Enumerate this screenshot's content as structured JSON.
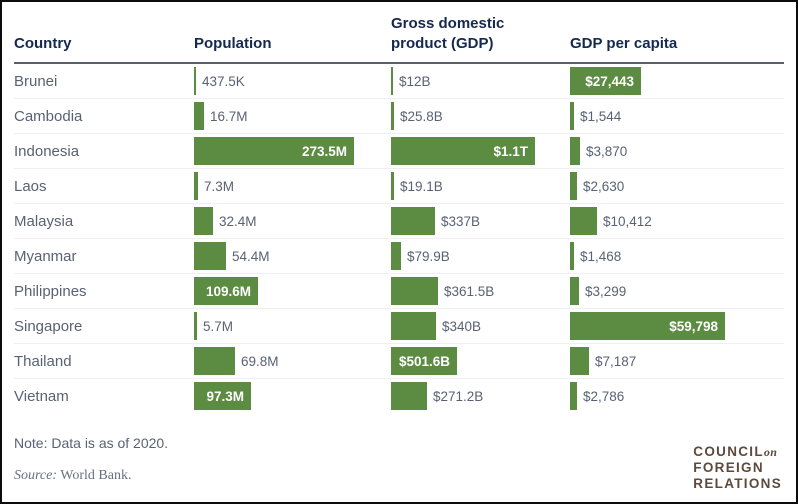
{
  "header": {
    "columns": [
      "Country",
      "Population",
      "Gross domestic product (GDP)",
      "GDP per capita"
    ]
  },
  "chart_data": {
    "type": "bar",
    "orientation": "horizontal",
    "description": "Table of horizontal bars comparing Southeast Asian countries",
    "categories": [
      "Brunei",
      "Cambodia",
      "Indonesia",
      "Laos",
      "Malaysia",
      "Myanmar",
      "Philippines",
      "Singapore",
      "Thailand",
      "Vietnam"
    ],
    "series_names": [
      "Population",
      "Gross domestic product (GDP)",
      "GDP per capita"
    ],
    "rows": [
      {
        "country": "Brunei",
        "population": {
          "label": "437.5K",
          "value": 0.4375,
          "inside": false
        },
        "gdp": {
          "label": "$12B",
          "value": 12,
          "inside": false
        },
        "gdp_per_capita": {
          "label": "$27,443",
          "value": 27443,
          "inside": true
        }
      },
      {
        "country": "Cambodia",
        "population": {
          "label": "16.7M",
          "value": 16.7,
          "inside": false
        },
        "gdp": {
          "label": "$25.8B",
          "value": 25.8,
          "inside": false
        },
        "gdp_per_capita": {
          "label": "$1,544",
          "value": 1544,
          "inside": false
        }
      },
      {
        "country": "Indonesia",
        "population": {
          "label": "273.5M",
          "value": 273.5,
          "inside": true
        },
        "gdp": {
          "label": "$1.1T",
          "value": 1100,
          "inside": true
        },
        "gdp_per_capita": {
          "label": "$3,870",
          "value": 3870,
          "inside": false
        }
      },
      {
        "country": "Laos",
        "population": {
          "label": "7.3M",
          "value": 7.3,
          "inside": false
        },
        "gdp": {
          "label": "$19.1B",
          "value": 19.1,
          "inside": false
        },
        "gdp_per_capita": {
          "label": "$2,630",
          "value": 2630,
          "inside": false
        }
      },
      {
        "country": "Malaysia",
        "population": {
          "label": "32.4M",
          "value": 32.4,
          "inside": false
        },
        "gdp": {
          "label": "$337B",
          "value": 337,
          "inside": false
        },
        "gdp_per_capita": {
          "label": "$10,412",
          "value": 10412,
          "inside": false
        }
      },
      {
        "country": "Myanmar",
        "population": {
          "label": "54.4M",
          "value": 54.4,
          "inside": false
        },
        "gdp": {
          "label": "$79.9B",
          "value": 79.9,
          "inside": false
        },
        "gdp_per_capita": {
          "label": "$1,468",
          "value": 1468,
          "inside": false
        }
      },
      {
        "country": "Philippines",
        "population": {
          "label": "109.6M",
          "value": 109.6,
          "inside": true
        },
        "gdp": {
          "label": "$361.5B",
          "value": 361.5,
          "inside": false
        },
        "gdp_per_capita": {
          "label": "$3,299",
          "value": 3299,
          "inside": false
        }
      },
      {
        "country": "Singapore",
        "population": {
          "label": "5.7M",
          "value": 5.7,
          "inside": false
        },
        "gdp": {
          "label": "$340B",
          "value": 340,
          "inside": false
        },
        "gdp_per_capita": {
          "label": "$59,798",
          "value": 59798,
          "inside": true
        }
      },
      {
        "country": "Thailand",
        "population": {
          "label": "69.8M",
          "value": 69.8,
          "inside": false
        },
        "gdp": {
          "label": "$501.6B",
          "value": 501.6,
          "inside": true
        },
        "gdp_per_capita": {
          "label": "$7,187",
          "value": 7187,
          "inside": false
        }
      },
      {
        "country": "Vietnam",
        "population": {
          "label": "97.3M",
          "value": 97.3,
          "inside": true
        },
        "gdp": {
          "label": "$271.2B",
          "value": 271.2,
          "inside": false
        },
        "gdp_per_capita": {
          "label": "$2,786",
          "value": 2786,
          "inside": false
        }
      }
    ],
    "units": {
      "population": "persons (K/M)",
      "gdp": "US dollars (B/T)",
      "gdp_per_capita": "US dollars"
    },
    "legend_position": "none",
    "grid": "row-separators-only"
  },
  "footer": {
    "note": "Note: Data is as of 2020.",
    "source_prefix": "Source:",
    "source_text": "World Bank.",
    "logo": {
      "council": "COUNCIL",
      "on": "on",
      "foreign": "FOREIGN",
      "relations": "RELATIONS"
    }
  },
  "colors": {
    "bar_green": "#5c8b42",
    "header_navy": "#14294d",
    "text_slate": "#596273",
    "header_rule": "#56616d",
    "row_separator": "#eef0f2",
    "logo_brown": "#5e4a3c",
    "border_black": "#0c0c0c"
  }
}
